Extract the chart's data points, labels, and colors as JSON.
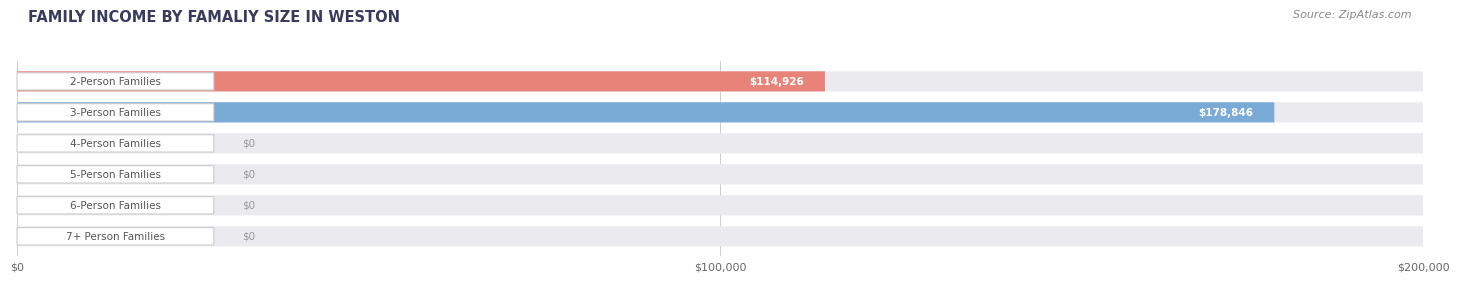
{
  "title": "FAMILY INCOME BY FAMALIY SIZE IN WESTON",
  "source": "Source: ZipAtlas.com",
  "categories": [
    "2-Person Families",
    "3-Person Families",
    "4-Person Families",
    "5-Person Families",
    "6-Person Families",
    "7+ Person Families"
  ],
  "values": [
    114926,
    178846,
    0,
    0,
    0,
    0
  ],
  "bar_colors": [
    "#e8837a",
    "#7aaad6",
    "#c9a0cb",
    "#6ec4b8",
    "#a8a8d8",
    "#f4a0b8"
  ],
  "value_labels": [
    "$114,926",
    "$178,846",
    "$0",
    "$0",
    "$0",
    "$0"
  ],
  "xlim": [
    0,
    200000
  ],
  "xticks": [
    0,
    100000,
    200000
  ],
  "xtick_labels": [
    "$0",
    "$100,000",
    "$200,000"
  ],
  "bar_bg_color": "#eaeaef",
  "title_color": "#3a3a5c",
  "title_fontsize": 10.5,
  "source_fontsize": 8,
  "label_fontsize": 7.5,
  "value_fontsize": 7.5,
  "bar_height": 0.65
}
